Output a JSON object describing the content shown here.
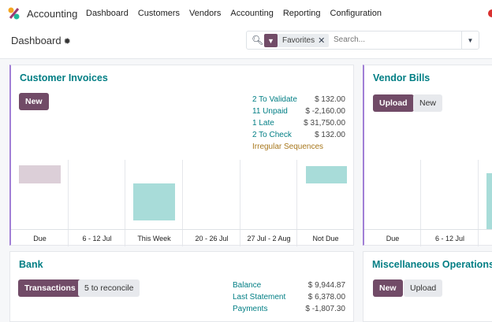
{
  "nav": {
    "app": "Accounting",
    "menu": [
      "Dashboard",
      "Customers",
      "Vendors",
      "Accounting",
      "Reporting",
      "Configuration"
    ]
  },
  "control": {
    "title": "Dashboard",
    "facet": "Favorites",
    "search_placeholder": "Search..."
  },
  "customer_invoices": {
    "title": "Customer Invoices",
    "new": "New",
    "stats": [
      {
        "label": "2 To Validate",
        "value": "$ 132.00"
      },
      {
        "label": "11 Unpaid",
        "value": "$ -2,160.00"
      },
      {
        "label": "1 Late",
        "value": "$ 31,750.00"
      },
      {
        "label": "2 To Check",
        "value": "$ 132.00"
      }
    ],
    "irregular": "Irregular Sequences",
    "chart_labels": [
      "Due",
      "6 - 12 Jul",
      "This Week",
      "20 - 26 Jul",
      "27 Jul - 2 Aug",
      "Not Due"
    ]
  },
  "vendor_bills": {
    "title": "Vendor Bills",
    "upload": "Upload",
    "new": "New",
    "chart_labels": [
      "Due",
      "6 - 12 Jul"
    ]
  },
  "bank": {
    "title": "Bank",
    "transactions": "Transactions",
    "reconcile": "5 to reconcile",
    "stats": [
      {
        "label": "Balance",
        "value": "$ 9,944.87"
      },
      {
        "label": "Last Statement",
        "value": "$ 6,378.00"
      },
      {
        "label": "Payments",
        "value": "$ -1,807.30"
      }
    ]
  },
  "misc": {
    "title": "Miscellaneous Operations",
    "new": "New",
    "upload": "Upload"
  },
  "colors": {
    "primary": "#714b67",
    "teal": "#017e84",
    "bar_past": "#dccfd8",
    "bar_future": "#a8dcd9"
  }
}
